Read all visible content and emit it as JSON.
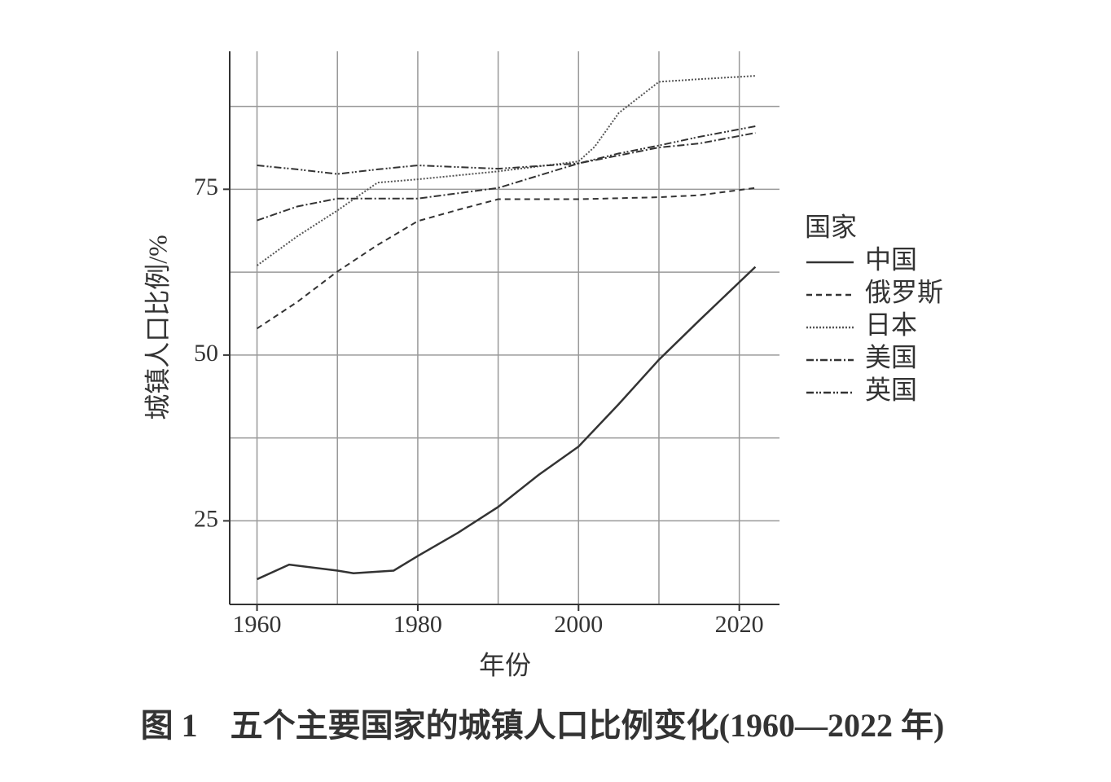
{
  "chart_data": {
    "type": "line",
    "caption": "图 1　五个主要国家的城镇人口比例变化(1960—2022 年)",
    "xlabel": "年份",
    "ylabel": "城镇人口比例/%",
    "legend_title": "国家",
    "legend": "right",
    "xlim": [
      1956.6,
      2025
    ],
    "ylim": [
      12.4,
      95.8
    ],
    "xticks": [
      1960,
      1980,
      2000,
      2020
    ],
    "xgrid": [
      1960,
      1970,
      1980,
      1990,
      2000,
      2010,
      2020
    ],
    "yticks": [
      25,
      50,
      75
    ],
    "ygrid": [
      25,
      37.5,
      50,
      62.5,
      75,
      87.5
    ],
    "grid": true,
    "series": [
      {
        "name": "中国",
        "color": "#333333",
        "dash": "none",
        "x": [
          1960,
          1964,
          1970,
          1972,
          1977,
          1980,
          1985,
          1990,
          1995,
          2000,
          2005,
          2010,
          2015,
          2022
        ],
        "values": [
          16.2,
          18.4,
          17.5,
          17.1,
          17.5,
          19.7,
          23.2,
          27.1,
          31.9,
          36.2,
          42.6,
          49.3,
          55.2,
          63.3
        ]
      },
      {
        "name": "俄罗斯",
        "color": "#333333",
        "dash": "7,5",
        "x": [
          1960,
          1965,
          1970,
          1975,
          1980,
          1985,
          1990,
          2000,
          2010,
          2015,
          2022
        ],
        "values": [
          54.0,
          58.0,
          62.6,
          66.6,
          70.2,
          71.9,
          73.5,
          73.5,
          73.8,
          74.1,
          75.2
        ]
      },
      {
        "name": "日本",
        "color": "#555555",
        "dash": "2,2",
        "x": [
          1960,
          1965,
          1970,
          1975,
          1980,
          1990,
          2000,
          2002,
          2005,
          2010,
          2015,
          2022
        ],
        "values": [
          63.5,
          67.9,
          71.8,
          76.0,
          76.5,
          77.7,
          79.2,
          81.4,
          86.5,
          91.2,
          91.6,
          92.1
        ]
      },
      {
        "name": "美国",
        "color": "#333333",
        "dash": "9,3,2,3",
        "x": [
          1960,
          1965,
          1970,
          1980,
          1990,
          2000,
          2010,
          2015,
          2022
        ],
        "values": [
          70.3,
          72.4,
          73.6,
          73.6,
          75.2,
          78.9,
          81.3,
          81.9,
          83.5
        ]
      },
      {
        "name": "英国",
        "color": "#333333",
        "dash": "9,3,2,2,2,3",
        "x": [
          1960,
          1965,
          1970,
          1975,
          1980,
          1990,
          2000,
          2005,
          2010,
          2015,
          2022
        ],
        "values": [
          78.6,
          78.0,
          77.3,
          78.0,
          78.6,
          78.1,
          78.9,
          80.4,
          81.6,
          82.9,
          84.5
        ]
      }
    ]
  }
}
